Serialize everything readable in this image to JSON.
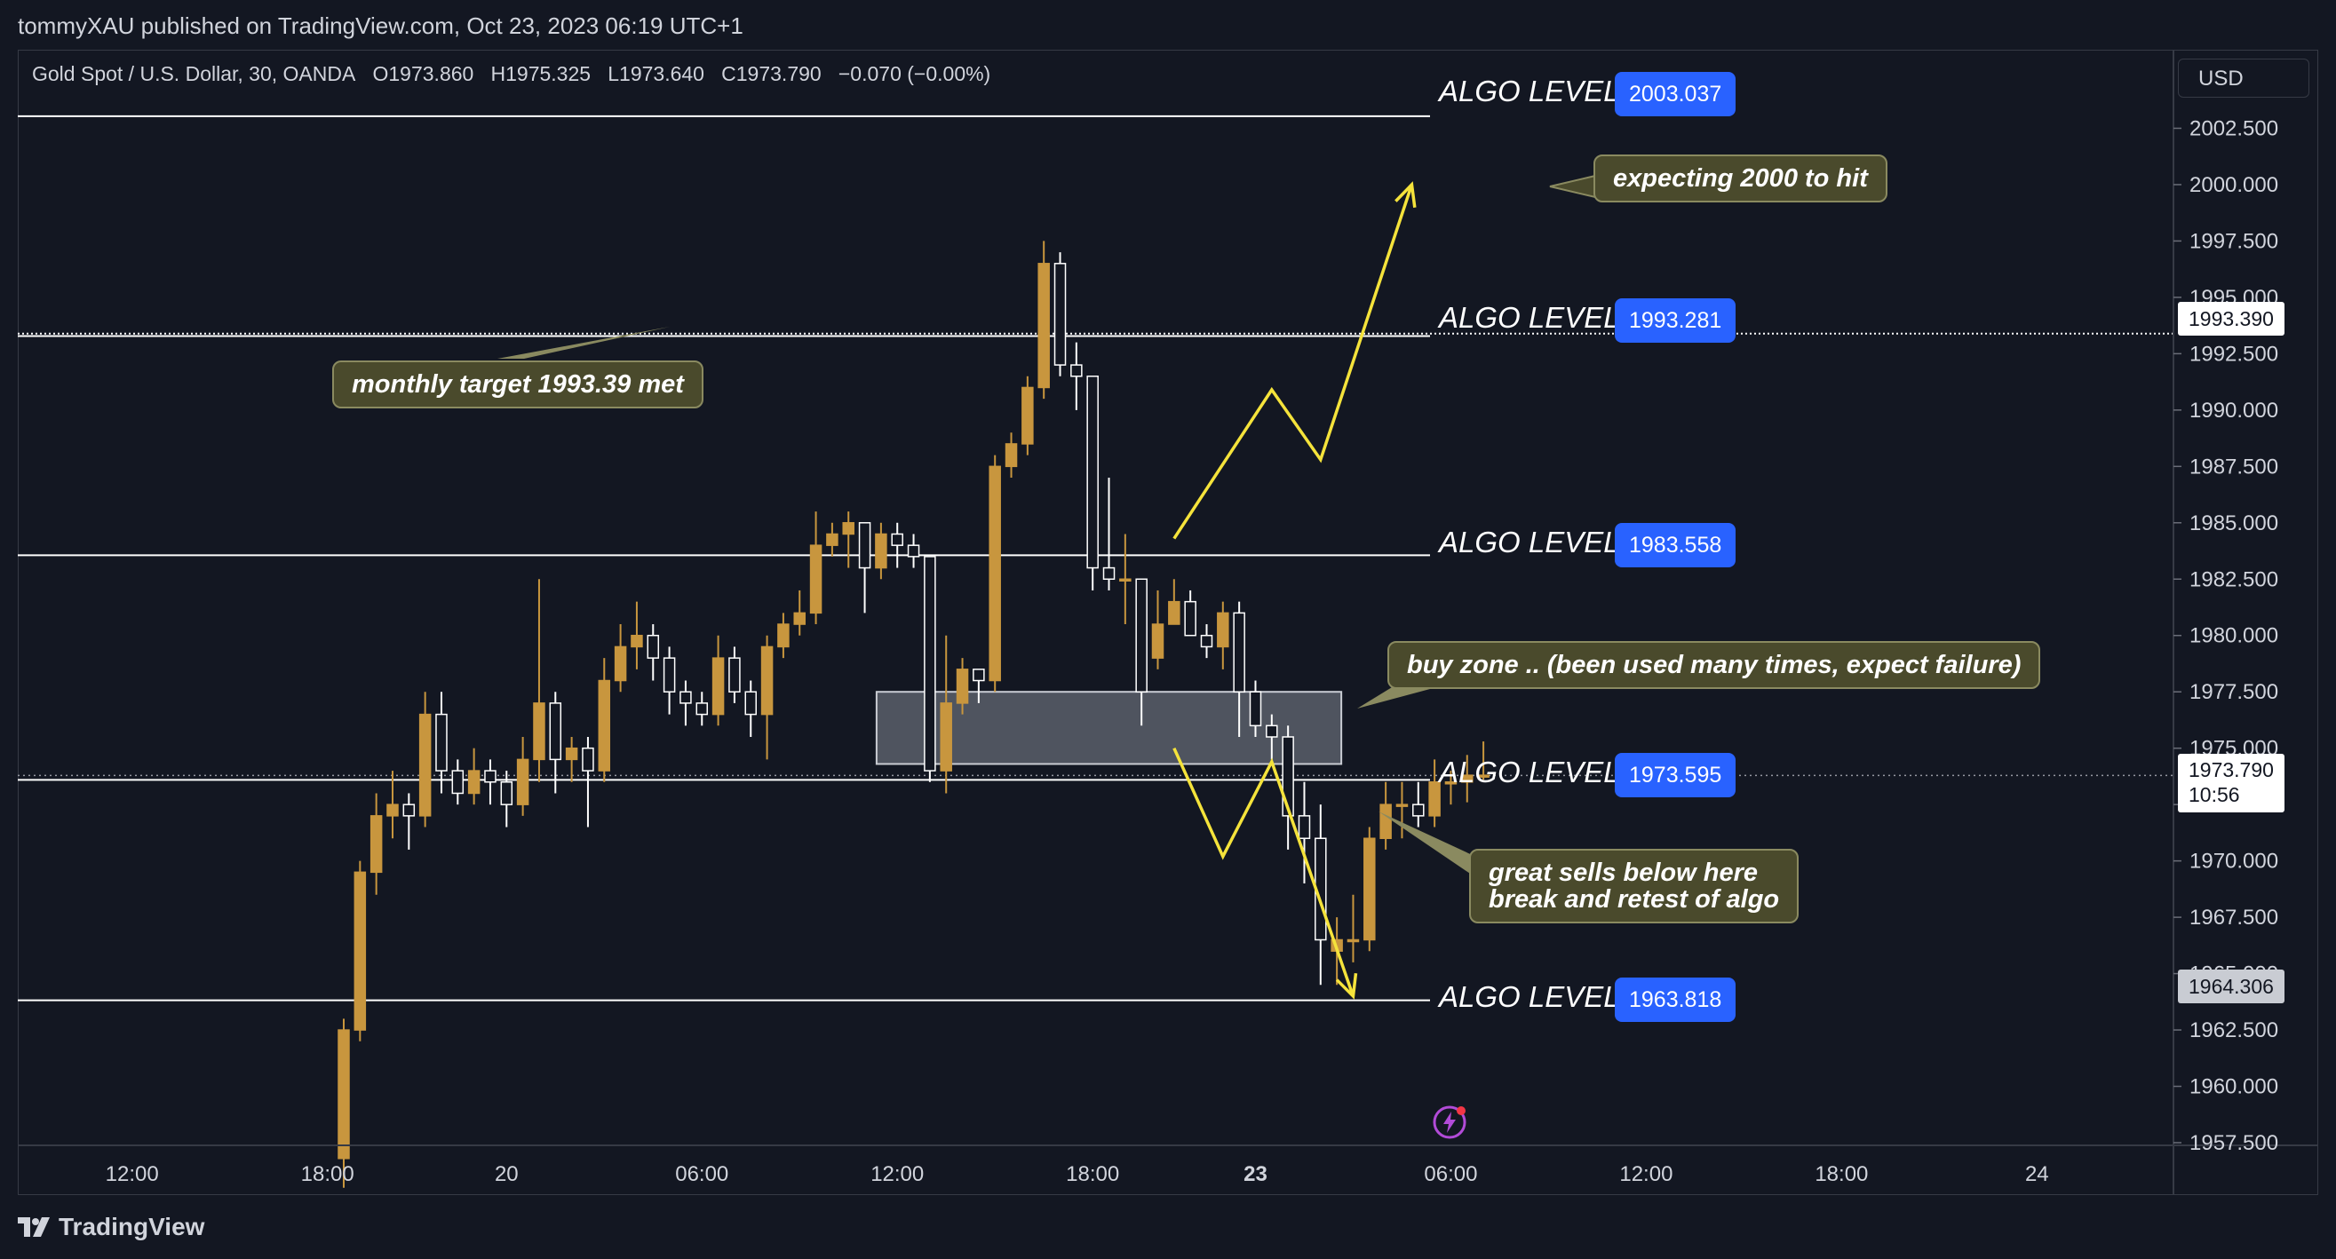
{
  "header": {
    "published": "tommyXAU published on TradingView.com, Oct 23, 2023 06:19 UTC+1"
  },
  "symbol": {
    "name": "Gold Spot / U.S. Dollar, 30, OANDA",
    "open_label": "O",
    "open": "1973.860",
    "high_label": "H",
    "high": "1975.325",
    "low_label": "L",
    "low": "1973.640",
    "close_label": "C",
    "close": "1973.790",
    "change": "−0.070 (−0.00%)"
  },
  "currency": "USD",
  "algo_label": "ALGO LEVEL",
  "callouts": {
    "expecting": "expecting 2000 to hit",
    "monthly": "monthly target 1993.39 met",
    "buy_zone": "buy zone .. (been used many times, expect failure)",
    "sells_line1": "great sells below here",
    "sells_line2": "break and retest of algo"
  },
  "price_tags": {
    "monthly_target": "1993.390",
    "last_price": "1973.790",
    "countdown": "10:56",
    "low_marker": "1964.306"
  },
  "footer": {
    "brand": "TradingView"
  },
  "colors": {
    "background": "#131722",
    "bull": "#c8963e",
    "bear": "#ffffff",
    "algo_badge": "#2962ff",
    "projection": "#f5e33b",
    "callout_bg": "#4a4a2c"
  },
  "chart_data": {
    "type": "candlestick",
    "symbol": "XAUUSD",
    "interval_minutes": 30,
    "y_range": [
      1957.5,
      2005
    ],
    "y_ticks": [
      "2002.500",
      "2000.000",
      "1997.500",
      "1995.000",
      "1992.500",
      "1990.000",
      "1987.500",
      "1985.000",
      "1982.500",
      "1980.000",
      "1977.500",
      "1975.000",
      "1972.500",
      "1970.000",
      "1967.500",
      "1965.000",
      "1962.500",
      "1960.000",
      "1957.500"
    ],
    "x_ticks": [
      {
        "label": "12:00",
        "bar": -13,
        "bold": false
      },
      {
        "label": "18:00",
        "bar": -1,
        "bold": false
      },
      {
        "label": "20",
        "bar": 10,
        "bold": false
      },
      {
        "label": "06:00",
        "bar": 22,
        "bold": false
      },
      {
        "label": "12:00",
        "bar": 34,
        "bold": false
      },
      {
        "label": "18:00",
        "bar": 46,
        "bold": false
      },
      {
        "label": "23",
        "bar": 56,
        "bold": true
      },
      {
        "label": "06:00",
        "bar": 68,
        "bold": false
      },
      {
        "label": "12:00",
        "bar": 80,
        "bold": false
      },
      {
        "label": "18:00",
        "bar": 92,
        "bold": false
      },
      {
        "label": "24",
        "bar": 104,
        "bold": false
      }
    ],
    "algo_levels": [
      2003.037,
      1993.281,
      1983.558,
      1973.595,
      1963.818
    ],
    "monthly_target": 1993.39,
    "last_price": 1973.79,
    "buy_zone": {
      "from_bar": 33,
      "to_bar": 61,
      "top": 1977.5,
      "bottom": 1974.3
    },
    "projection_up": [
      [
        51,
        1984.3
      ],
      [
        57,
        1990.9
      ],
      [
        60,
        1987.8
      ],
      [
        65.6,
        2000
      ]
    ],
    "projection_down": [
      [
        51,
        1975
      ],
      [
        54,
        1970.2
      ],
      [
        57,
        1974.4
      ],
      [
        62,
        1964
      ]
    ],
    "candles": [
      [
        1956.8,
        1962.5,
        1955.5,
        1963.0
      ],
      [
        1962.5,
        1969.5,
        1962.0,
        1970.0
      ],
      [
        1969.5,
        1972.0,
        1968.5,
        1973.0
      ],
      [
        1972.0,
        1972.5,
        1971.0,
        1974.0
      ],
      [
        1972.5,
        1972.0,
        1970.5,
        1973.0
      ],
      [
        1972.0,
        1976.5,
        1971.5,
        1977.5
      ],
      [
        1976.5,
        1974.0,
        1973.0,
        1977.5
      ],
      [
        1974.0,
        1973.0,
        1972.5,
        1974.5
      ],
      [
        1973.0,
        1974.0,
        1972.5,
        1975.0
      ],
      [
        1974.0,
        1973.5,
        1972.5,
        1974.5
      ],
      [
        1973.5,
        1972.5,
        1971.5,
        1974.0
      ],
      [
        1972.5,
        1974.5,
        1972.0,
        1975.5
      ],
      [
        1974.5,
        1977.0,
        1973.5,
        1982.5
      ],
      [
        1977.0,
        1974.5,
        1973.0,
        1977.5
      ],
      [
        1974.5,
        1975.0,
        1973.5,
        1975.5
      ],
      [
        1975.0,
        1974.0,
        1971.5,
        1975.5
      ],
      [
        1974.0,
        1978.0,
        1973.5,
        1979.0
      ],
      [
        1978.0,
        1979.5,
        1977.5,
        1980.5
      ],
      [
        1979.5,
        1980.0,
        1978.5,
        1981.5
      ],
      [
        1980.0,
        1979.0,
        1978.0,
        1980.5
      ],
      [
        1979.0,
        1977.5,
        1976.5,
        1979.5
      ],
      [
        1977.5,
        1977.0,
        1976.0,
        1978.0
      ],
      [
        1977.0,
        1976.5,
        1976.0,
        1977.5
      ],
      [
        1976.5,
        1979.0,
        1976.0,
        1980.0
      ],
      [
        1979.0,
        1977.5,
        1977.0,
        1979.5
      ],
      [
        1977.5,
        1976.5,
        1975.5,
        1978.0
      ],
      [
        1976.5,
        1979.5,
        1974.5,
        1980.0
      ],
      [
        1979.5,
        1980.5,
        1979.0,
        1981.0
      ],
      [
        1980.5,
        1981.0,
        1980.0,
        1982.0
      ],
      [
        1981.0,
        1984.0,
        1980.5,
        1985.5
      ],
      [
        1984.0,
        1984.5,
        1983.5,
        1985.0
      ],
      [
        1984.5,
        1985.0,
        1983.0,
        1985.5
      ],
      [
        1985.0,
        1983.0,
        1981.0,
        1985.0
      ],
      [
        1983.0,
        1984.5,
        1982.5,
        1985.0
      ],
      [
        1984.5,
        1984.0,
        1983.0,
        1985.0
      ],
      [
        1984.0,
        1983.5,
        1983.0,
        1984.5
      ],
      [
        1983.5,
        1974.0,
        1973.5,
        1983.5
      ],
      [
        1974.0,
        1977.0,
        1973.0,
        1980.0
      ],
      [
        1977.0,
        1978.5,
        1976.5,
        1979.0
      ],
      [
        1978.5,
        1978.0,
        1977.0,
        1978.5
      ],
      [
        1978.0,
        1987.5,
        1977.5,
        1988.0
      ],
      [
        1987.5,
        1988.5,
        1987.0,
        1989.0
      ],
      [
        1988.5,
        1991.0,
        1988.0,
        1991.5
      ],
      [
        1991.0,
        1996.5,
        1990.5,
        1997.5
      ],
      [
        1996.5,
        1992.0,
        1991.5,
        1997.0
      ],
      [
        1992.0,
        1991.5,
        1990.0,
        1993.0
      ],
      [
        1991.5,
        1983.0,
        1982.0,
        1991.5
      ],
      [
        1983.0,
        1982.5,
        1982.0,
        1987.0
      ],
      [
        1982.5,
        1982.5,
        1980.5,
        1984.5
      ],
      [
        1982.5,
        1977.5,
        1976.0,
        1982.5
      ],
      [
        1979.0,
        1980.5,
        1978.5,
        1982.0
      ],
      [
        1980.5,
        1981.5,
        1980.5,
        1982.5
      ],
      [
        1981.5,
        1980.0,
        1980.0,
        1982.0
      ],
      [
        1980.0,
        1979.5,
        1979.0,
        1980.5
      ],
      [
        1979.5,
        1981.0,
        1978.5,
        1981.5
      ],
      [
        1981.0,
        1977.5,
        1975.5,
        1981.5
      ],
      [
        1977.5,
        1976.0,
        1975.5,
        1978.0
      ],
      [
        1976.0,
        1975.5,
        1974.5,
        1976.5
      ],
      [
        1975.5,
        1972.0,
        1970.5,
        1976.0
      ],
      [
        1972.0,
        1971.0,
        1969.0,
        1973.5
      ],
      [
        1971.0,
        1966.5,
        1964.5,
        1972.5
      ],
      [
        1966.0,
        1966.5,
        1964.5,
        1967.5
      ],
      [
        1966.5,
        1966.5,
        1965.5,
        1968.5
      ],
      [
        1966.5,
        1971.0,
        1966.0,
        1971.5
      ],
      [
        1971.0,
        1972.5,
        1970.5,
        1973.5
      ],
      [
        1972.5,
        1972.5,
        1971.0,
        1973.5
      ],
      [
        1972.5,
        1972.0,
        1971.5,
        1973.5
      ],
      [
        1972.0,
        1973.5,
        1971.5,
        1974.5
      ],
      [
        1973.5,
        1973.5,
        1972.5,
        1974.0
      ],
      [
        1973.5,
        1973.8,
        1972.6,
        1974.7
      ],
      [
        1973.8,
        1973.8,
        1973.6,
        1975.3
      ]
    ]
  }
}
